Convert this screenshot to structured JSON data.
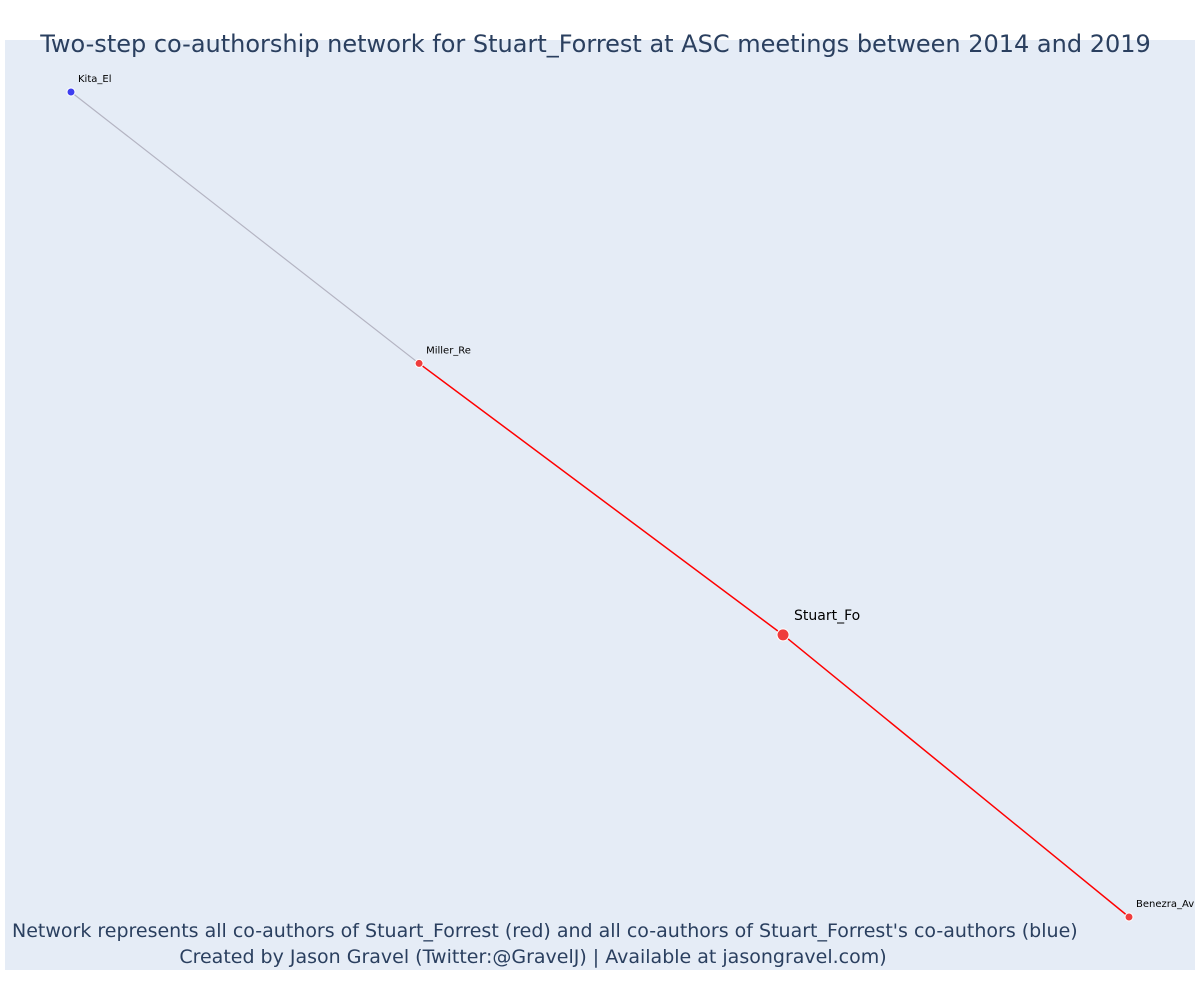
{
  "figure": {
    "title": "Two-step co-authorship network for Stuart_Forrest at ASC meetings between 2014 and 2019",
    "caption_lines": [
      "Network represents all co-authors of Stuart_Forrest (red) and all co-authors of Stuart_Forrest's co-authors (blue)",
      "Created by Jason Gravel (Twitter:@GravelJ) | Available at jasongravel.com)"
    ]
  },
  "colors": {
    "plot_background": "#e5ecf6",
    "text": "#2a3f5f",
    "first_degree": "#ef3d3d",
    "second_degree": "#3e3ef0",
    "first_degree_edge": "#ff0000",
    "second_degree_edge": "#b4b4c2"
  },
  "chart_data": {
    "type": "network",
    "title": "Two-step co-authorship network for Stuart_Forrest at ASC meetings between 2014 and 2019",
    "nodes": [
      {
        "id": "Kita_El",
        "label": "Kita_El",
        "group": "second_degree",
        "x": 0.0,
        "y": 1.0
      },
      {
        "id": "Miller_Re",
        "label": "Miller_Re",
        "group": "first_degree",
        "x": 0.329,
        "y": 0.671
      },
      {
        "id": "Stuart_Fo",
        "label": "Stuart_Fo",
        "group": "focal",
        "x": 0.673,
        "y": 0.342
      },
      {
        "id": "Benezra_Av",
        "label": "Benezra_Av",
        "group": "first_degree",
        "x": 1.0,
        "y": 0.0
      }
    ],
    "edges": [
      {
        "source": "Kita_El",
        "target": "Miller_Re",
        "group": "second_degree"
      },
      {
        "source": "Miller_Re",
        "target": "Stuart_Fo",
        "group": "first_degree"
      },
      {
        "source": "Stuart_Fo",
        "target": "Benezra_Av",
        "group": "first_degree"
      }
    ],
    "xaxis_visible": false,
    "yaxis_visible": false,
    "grid": false,
    "legend": false
  }
}
